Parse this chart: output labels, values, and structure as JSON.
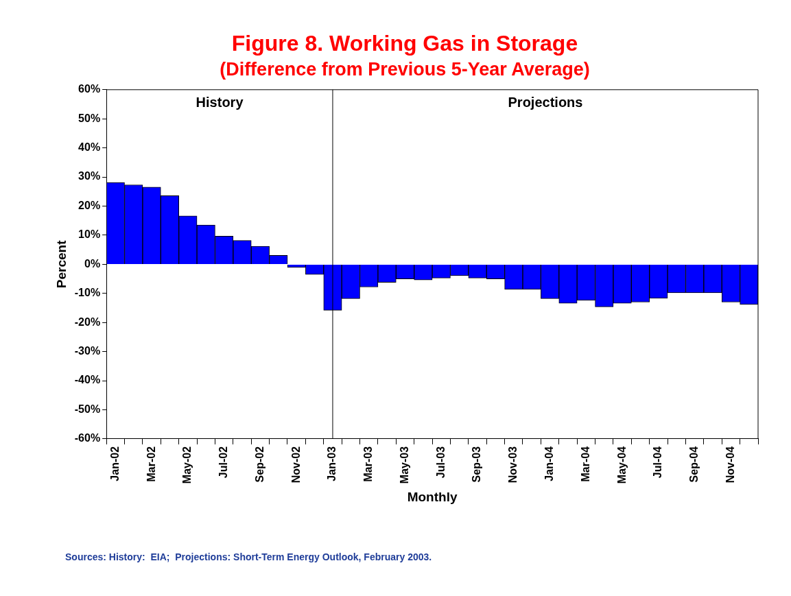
{
  "chart_data": {
    "type": "bar",
    "title": "Figure 8. Working Gas in Storage",
    "subtitle": "(Difference from Previous 5-Year Average)",
    "xlabel": "Monthly",
    "ylabel": "Percent",
    "categories": [
      "Jan-02",
      null,
      "Mar-02",
      null,
      "May-02",
      null,
      "Jul-02",
      null,
      "Sep-02",
      null,
      "Nov-02",
      null,
      "Jan-03",
      null,
      "Mar-03",
      null,
      "May-03",
      null,
      "Jul-03",
      null,
      "Sep-03",
      null,
      "Nov-03",
      null,
      "Jan-04",
      null,
      "Mar-04",
      null,
      "May-04",
      null,
      "Jul-04",
      null,
      "Sep-04",
      null,
      "Nov-04",
      null
    ],
    "values": [
      28.1,
      27.3,
      26.5,
      23.6,
      16.6,
      13.5,
      9.7,
      8.2,
      6.2,
      3.1,
      -1.1,
      -3.5,
      -15.8,
      -11.8,
      -7.8,
      -6.2,
      -5.0,
      -5.4,
      -4.7,
      -3.9,
      -4.7,
      -5.0,
      -8.6,
      -8.6,
      -11.8,
      -13.4,
      -12.4,
      -14.6,
      -13.4,
      -13.0,
      -11.7,
      -9.8,
      -9.8,
      -9.8,
      -13.0,
      -13.8
    ],
    "color": "#0000ff",
    "ylim": [
      -60,
      60
    ],
    "yticks": [
      {
        "value": -60,
        "label": "-60%"
      },
      {
        "value": -50,
        "label": "-50%"
      },
      {
        "value": -40,
        "label": "-40%"
      },
      {
        "value": -30,
        "label": "-30%"
      },
      {
        "value": -20,
        "label": "-20%"
      },
      {
        "value": -10,
        "label": "-10%"
      },
      {
        "value": 0,
        "label": "0%"
      },
      {
        "value": 10,
        "label": "10%"
      },
      {
        "value": 20,
        "label": "20%"
      },
      {
        "value": 30,
        "label": "30%"
      },
      {
        "value": 40,
        "label": "40%"
      },
      {
        "value": 50,
        "label": "50%"
      },
      {
        "value": 60,
        "label": "60%"
      }
    ],
    "grid": false,
    "legend": false,
    "ref_lines": [
      {
        "axis": "x",
        "value": "Jan-03"
      }
    ],
    "annotations": [
      "History",
      "Projections",
      "Sources: History:  EIA;  Projections: Short-Term Energy Outlook, February 2003."
    ]
  }
}
